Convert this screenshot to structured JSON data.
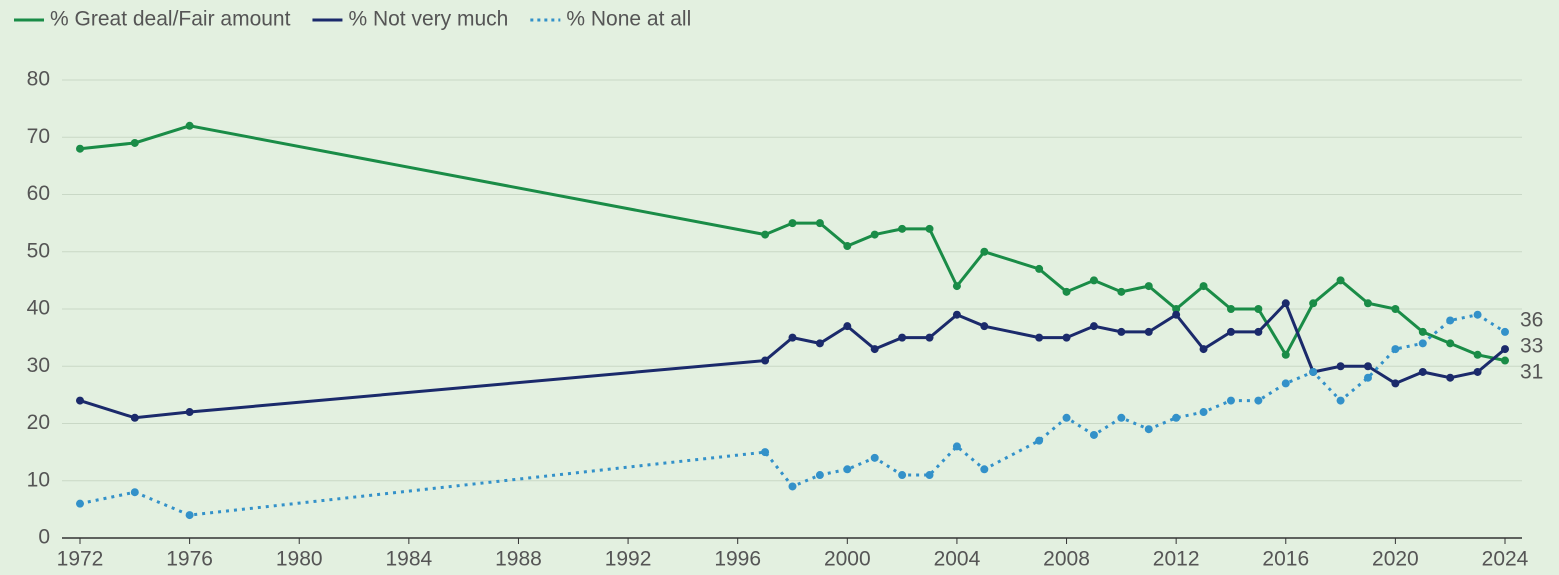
{
  "chart_data": {
    "type": "line",
    "x": [
      1972,
      1974,
      1976,
      1997,
      1998,
      1999,
      2000,
      2001,
      2002,
      2003,
      2004,
      2005,
      2007,
      2008,
      2009,
      2010,
      2011,
      2012,
      2013,
      2014,
      2015,
      2016,
      2017,
      2018,
      2019,
      2020,
      2021,
      2022,
      2023,
      2024
    ],
    "series": [
      {
        "name": "% Great deal/Fair amount",
        "color": "#1a8c47",
        "style": "solid",
        "values": [
          68,
          69,
          72,
          53,
          55,
          55,
          51,
          53,
          54,
          54,
          44,
          50,
          47,
          43,
          45,
          43,
          44,
          40,
          44,
          40,
          40,
          32,
          41,
          45,
          41,
          40,
          36,
          34,
          32,
          31
        ]
      },
      {
        "name": "% Not very much",
        "color": "#1b2a6b",
        "style": "solid",
        "values": [
          24,
          21,
          22,
          31,
          35,
          34,
          37,
          33,
          35,
          35,
          39,
          37,
          35,
          35,
          37,
          36,
          36,
          39,
          33,
          36,
          36,
          41,
          29,
          30,
          30,
          27,
          29,
          28,
          29,
          33
        ]
      },
      {
        "name": "% None at all",
        "color": "#3391c9",
        "style": "dotted",
        "values": [
          6,
          8,
          4,
          15,
          9,
          11,
          12,
          14,
          11,
          11,
          16,
          12,
          17,
          21,
          18,
          21,
          19,
          21,
          22,
          24,
          24,
          27,
          29,
          24,
          28,
          33,
          34,
          38,
          39,
          36
        ]
      }
    ],
    "xlim": [
      1972,
      2024
    ],
    "xticks": [
      1972,
      1976,
      1980,
      1984,
      1988,
      1992,
      1996,
      2000,
      2004,
      2008,
      2012,
      2016,
      2020,
      2024
    ],
    "ylim": [
      0,
      80
    ],
    "yticks": [
      0,
      10,
      20,
      30,
      40,
      50,
      60,
      70,
      80
    ],
    "grid": true,
    "legend": "top-left",
    "end_labels": true
  }
}
